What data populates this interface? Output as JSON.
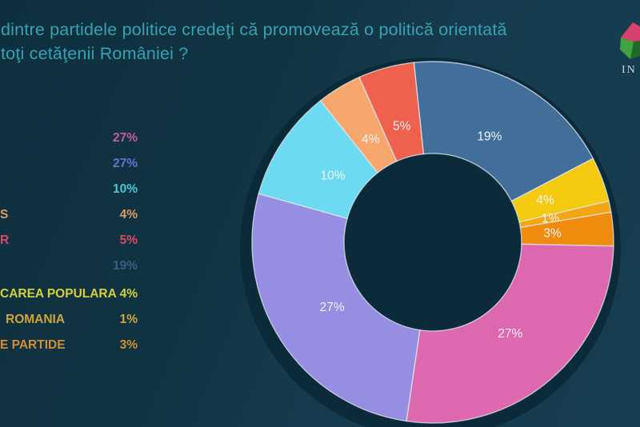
{
  "title": {
    "line1": "dintre partidele politice credeţi că promovează o politică orientată",
    "line2": "toţi cetăţenii României ?",
    "color": "#37a2b3"
  },
  "logo": {
    "wordmark": "IN",
    "face_top": "#d84070",
    "face_left": "#41a33f",
    "face_right": "#1f6b2c"
  },
  "chart_data": {
    "type": "pie",
    "subtype": "donut",
    "unit": "%",
    "start_angle_deg": -6,
    "direction": "clockwise",
    "inner_radius_ratio": 0.49,
    "title": "dintre partidele politice credeţi că promovează o politică orientată toţi cetăţenii României ?",
    "segments": [
      {
        "label": "19%",
        "value": 19,
        "color": "#426f99"
      },
      {
        "label": "4%",
        "value": 4,
        "color": "#f4ca10"
      },
      {
        "label": "1%",
        "value": 1,
        "color": "#f4a513"
      },
      {
        "label": "3%",
        "value": 3,
        "color": "#ef8b0d"
      },
      {
        "label": "27%",
        "value": 27,
        "color": "#de68b0"
      },
      {
        "label": "27%",
        "value": 27,
        "color": "#958ee3"
      },
      {
        "label": "10%",
        "value": 10,
        "color": "#6cdaf0"
      },
      {
        "label": "4%",
        "value": 4,
        "color": "#f7a76c"
      },
      {
        "label": "5%",
        "value": 5,
        "color": "#ed614d"
      }
    ]
  },
  "legend": {
    "rows": [
      {
        "name": "",
        "value": "27%",
        "color": "#c75b9e"
      },
      {
        "name": "",
        "value": "27%",
        "color": "#6a6fd0"
      },
      {
        "name": "",
        "value": "10%",
        "color": "#4cc4d8"
      },
      {
        "name": "S",
        "value": "4%",
        "color": "#dd9c61"
      },
      {
        "name": "R",
        "value": "5%",
        "color": "#d84a66"
      },
      {
        "name": "",
        "value": "19%",
        "color": "#3b5e80"
      },
      {
        "name": "CAREA POPULARA",
        "value": "4%",
        "color": "#d6cf3b"
      },
      {
        "name": "ROMANIA",
        "value": "1%",
        "color": "#cfa53a"
      },
      {
        "name": "E PARTIDE",
        "value": "3%",
        "color": "#d18f35"
      }
    ]
  }
}
